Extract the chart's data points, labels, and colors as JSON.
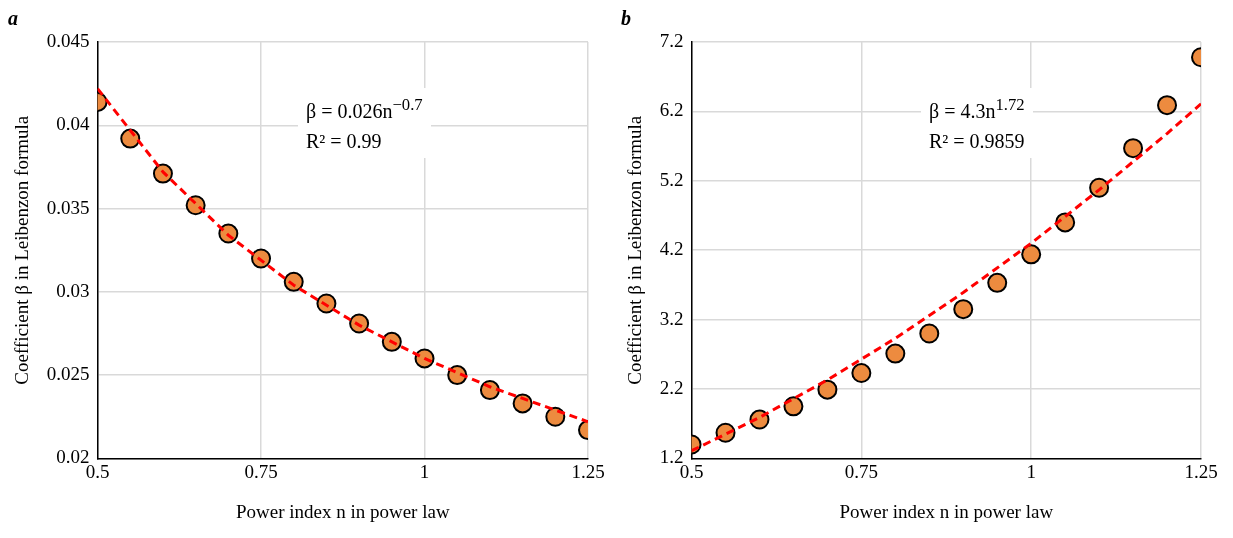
{
  "chart_data": [
    {
      "type": "scatter",
      "title": "a",
      "xlabel": "Power index n in power law",
      "ylabel": "Coefficient β in Leibenzon formula",
      "xlim": [
        0.5,
        1.25
      ],
      "xticks": [
        0.5,
        0.75,
        1,
        1.25
      ],
      "ylim": [
        0.02,
        0.045
      ],
      "yticks": [
        0.02,
        0.025,
        0.03,
        0.035,
        0.04,
        0.045
      ],
      "grid": true,
      "legend": false,
      "marker": "circle",
      "annotations": [
        "β = 0.026n$^{−0.7}$",
        "R² = 0.99"
      ],
      "series": [
        {
          "color": "#ed8b3f",
          "x": [
            0.5,
            0.55,
            0.6,
            0.65,
            0.7,
            0.75,
            0.8,
            0.85,
            0.9,
            0.95,
            1.0,
            1.05,
            1.1,
            1.15,
            1.2,
            1.25
          ],
          "values": [
            0.0414,
            0.0392,
            0.0371,
            0.0352,
            0.0335,
            0.032,
            0.0306,
            0.0293,
            0.0281,
            0.027,
            0.026,
            0.025,
            0.0241,
            0.0233,
            0.0225,
            0.0217
          ]
        },
        {
          "type": "line",
          "color": "#ff0000",
          "line_style": "dashed",
          "marker": "none",
          "x": [
            0.5,
            0.6,
            0.7,
            0.8,
            0.9,
            1.0,
            1.1,
            1.2,
            1.25
          ],
          "values": [
            0.0422,
            0.0372,
            0.0334,
            0.0304,
            0.028,
            0.026,
            0.0243,
            0.0229,
            0.0222
          ]
        }
      ]
    },
    {
      "type": "scatter",
      "title": "b",
      "xlabel": "Power index n in power law",
      "ylabel": "Coefficient β in Leibenzon formula",
      "xlim": [
        0.5,
        1.25
      ],
      "xticks": [
        0.5,
        0.75,
        1,
        1.25
      ],
      "ylim": [
        1.2,
        7.2
      ],
      "yticks": [
        1.2,
        2.2,
        3.2,
        4.2,
        5.2,
        6.2,
        7.2
      ],
      "grid": true,
      "legend": false,
      "marker": "circle",
      "annotations": [
        "β = 4.3n$^{1.72}$",
        "R² = 0.9859"
      ],
      "series": [
        {
          "color": "#ed8b3f",
          "x": [
            0.5,
            0.55,
            0.6,
            0.65,
            0.7,
            0.75,
            0.8,
            0.85,
            0.9,
            0.95,
            1.0,
            1.05,
            1.1,
            1.15,
            1.2,
            1.25
          ],
          "values": [
            1.4,
            1.57,
            1.76,
            1.95,
            2.19,
            2.43,
            2.71,
            3.0,
            3.35,
            3.73,
            4.14,
            4.6,
            5.1,
            5.67,
            6.29,
            6.98
          ]
        },
        {
          "type": "line",
          "color": "#ff0000",
          "line_style": "dashed",
          "marker": "none",
          "x": [
            0.5,
            0.6,
            0.7,
            0.8,
            0.9,
            1.0,
            1.1,
            1.2,
            1.25
          ],
          "values": [
            1.31,
            1.79,
            2.33,
            2.93,
            3.59,
            4.3,
            5.07,
            5.88,
            6.31
          ]
        }
      ]
    }
  ]
}
